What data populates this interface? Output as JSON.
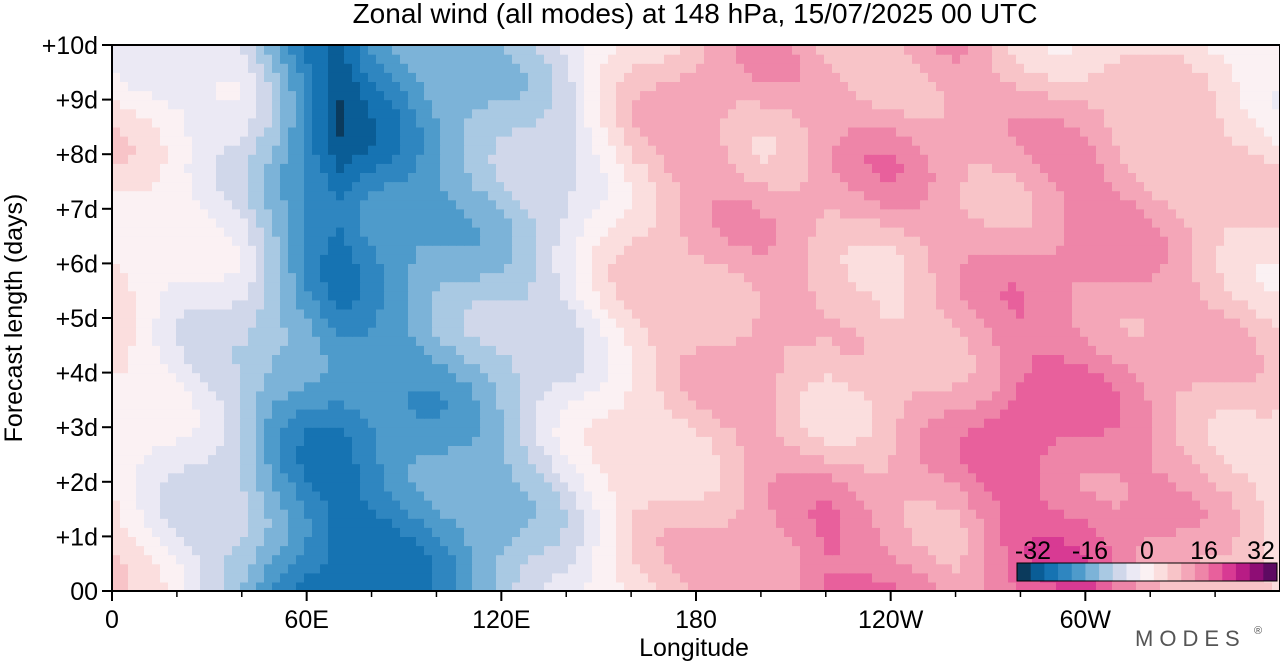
{
  "chart_data": {
    "type": "heatmap",
    "title": "Zonal wind (all modes) at 148 hPa,  15/07/2025  00 UTC",
    "xlabel": "Longitude",
    "ylabel": "Forecast length (days)",
    "x_tick_labels": [
      "0",
      "60E",
      "120E",
      "180",
      "120W",
      "60W"
    ],
    "x_tick_values_deg_east": [
      0,
      60,
      120,
      180,
      240,
      300
    ],
    "xlim_deg_east": [
      0,
      360
    ],
    "y_tick_labels": [
      "00",
      "+1d",
      "+2d",
      "+3d",
      "+4d",
      "+5d",
      "+6d",
      "+7d",
      "+8d",
      "+9d",
      "+10d"
    ],
    "y_tick_values_days": [
      0,
      1,
      2,
      3,
      4,
      5,
      6,
      7,
      8,
      9,
      10
    ],
    "ylim_days": [
      0,
      10
    ],
    "colorbar": {
      "tick_labels": [
        "-32",
        "-16",
        "0",
        "16",
        "32"
      ],
      "range": [
        -32,
        32
      ],
      "step": 4,
      "colors": [
        "#0b3a5c",
        "#0a5d96",
        "#1673b2",
        "#2f86c0",
        "#4e9bcb",
        "#7cb3d8",
        "#a9c9e3",
        "#d0d7ea",
        "#ebe9f4",
        "#fbf1f3",
        "#fbdede",
        "#f8c4c8",
        "#f4a6b8",
        "#ee85a8",
        "#e8609c",
        "#d83a93",
        "#b81c85",
        "#8e0d75",
        "#5e0a62"
      ]
    },
    "legend_placement": "bottom-right",
    "approx_field_m_per_s": {
      "note_longitudes_deg_east": [
        0,
        20,
        40,
        50,
        60,
        70,
        80,
        100,
        120,
        140,
        150,
        160,
        180,
        200,
        220,
        240,
        260,
        280,
        300,
        330,
        359
      ],
      "day_0": [
        4,
        -3,
        -10,
        -18,
        -24,
        -27,
        -25,
        -20,
        -14,
        -6,
        0,
        4,
        8,
        12,
        20,
        14,
        10,
        16,
        18,
        10,
        4
      ],
      "day_3": [
        2,
        -4,
        -9,
        -16,
        -20,
        -22,
        -20,
        -17,
        -12,
        -4,
        0,
        3,
        6,
        10,
        6,
        8,
        12,
        20,
        15,
        10,
        5
      ],
      "day_5": [
        3,
        -2,
        -6,
        -12,
        -16,
        -20,
        -18,
        -14,
        -10,
        -5,
        0,
        4,
        8,
        12,
        6,
        4,
        10,
        14,
        14,
        10,
        5
      ],
      "day_8": [
        3,
        0,
        -4,
        -12,
        -22,
        -29,
        -24,
        -16,
        -12,
        -6,
        0,
        6,
        12,
        8,
        12,
        14,
        10,
        10,
        14,
        8,
        3
      ],
      "day_10": [
        0,
        -2,
        -6,
        -14,
        -22,
        -28,
        -22,
        -15,
        -10,
        -5,
        0,
        4,
        10,
        12,
        6,
        8,
        12,
        6,
        4,
        2,
        0
      ]
    }
  },
  "branding": {
    "logo_text": "MODES",
    "mark": "®"
  }
}
